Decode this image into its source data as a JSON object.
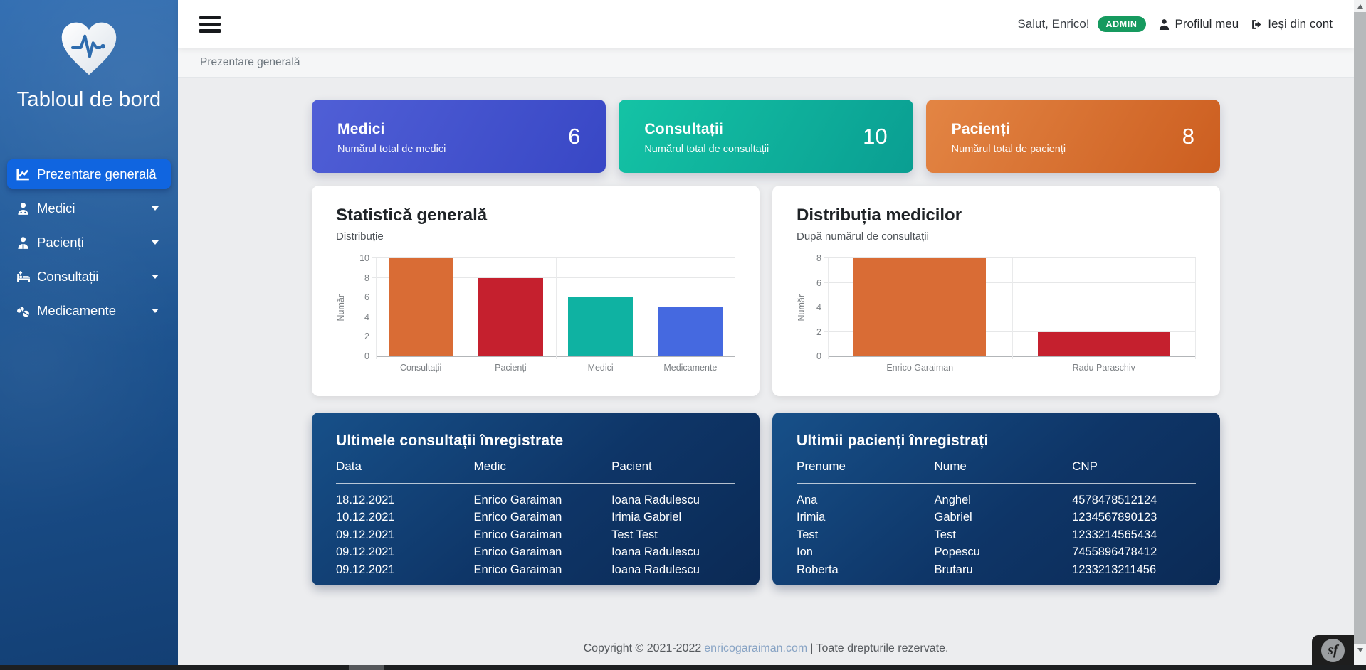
{
  "sidebar": {
    "title": "Tabloul de bord",
    "logo_icon": "heart-pulse-icon",
    "items": [
      {
        "name": "prezentare-generala",
        "label": "Prezentare generală",
        "icon": "chart-line-icon",
        "active": true,
        "caret": false
      },
      {
        "name": "medici",
        "label": "Medici",
        "icon": "doctor-icon",
        "active": false,
        "caret": true
      },
      {
        "name": "pacienti",
        "label": "Pacienți",
        "icon": "patient-icon",
        "active": false,
        "caret": true
      },
      {
        "name": "consultatii",
        "label": "Consultații",
        "icon": "bed-icon",
        "active": false,
        "caret": true
      },
      {
        "name": "medicamente",
        "label": "Medicamente",
        "icon": "pills-icon",
        "active": false,
        "caret": true
      }
    ]
  },
  "header": {
    "greeting": "Salut, Enrico!",
    "role_badge": "ADMIN",
    "badge_color": "#169a5f",
    "profile_label": "Profilul meu",
    "logout_label": "Ieși din cont"
  },
  "breadcrumb": "Prezentare generală",
  "stat_cards": [
    {
      "title": "Medici",
      "subtitle": "Numărul total de medici",
      "value": "6",
      "gradient": [
        "#505fd6",
        "#3847c5"
      ]
    },
    {
      "title": "Consultații",
      "subtitle": "Numărul total de consultații",
      "value": "10",
      "gradient": [
        "#14c3a5",
        "#0a9e92"
      ]
    },
    {
      "title": "Pacienți",
      "subtitle": "Numărul total de pacienți",
      "value": "8",
      "gradient": [
        "#e38544",
        "#cc5e20"
      ]
    }
  ],
  "chart_data": [
    {
      "type": "bar",
      "title": "Statistică generală",
      "subtitle": "Distribuție",
      "ylabel": "Număr",
      "categories": [
        "Consultații",
        "Pacienți",
        "Medici",
        "Medicamente"
      ],
      "values": [
        10,
        8,
        6,
        5
      ],
      "colors": [
        "#d96c35",
        "#c5202e",
        "#0fb2a2",
        "#4569e0"
      ],
      "ylim": [
        0,
        10
      ],
      "yticks": [
        0,
        2,
        4,
        6,
        8,
        10
      ],
      "grid": true,
      "legend": "none"
    },
    {
      "type": "bar",
      "title": "Distribuția medicilor",
      "subtitle": "După numărul de consultații",
      "ylabel": "Număr",
      "categories": [
        "Enrico Garaiman",
        "Radu Paraschiv"
      ],
      "values": [
        8,
        2
      ],
      "colors": [
        "#d96c35",
        "#c5202e"
      ],
      "ylim": [
        0,
        8
      ],
      "yticks": [
        0,
        2,
        4,
        6,
        8
      ],
      "grid": true,
      "legend": "none"
    }
  ],
  "tables": [
    {
      "title": "Ultimele consultații înregistrate",
      "columns": [
        "Data",
        "Medic",
        "Pacient"
      ],
      "rows": [
        [
          "18.12.2021",
          "Enrico Garaiman",
          "Ioana Radulescu"
        ],
        [
          "10.12.2021",
          "Enrico Garaiman",
          "Irimia Gabriel"
        ],
        [
          "09.12.2021",
          "Enrico Garaiman",
          "Test Test"
        ],
        [
          "09.12.2021",
          "Enrico Garaiman",
          "Ioana Radulescu"
        ],
        [
          "09.12.2021",
          "Enrico Garaiman",
          "Ioana Radulescu"
        ]
      ]
    },
    {
      "title": "Ultimii pacienți înregistrați",
      "columns": [
        "Prenume",
        "Nume",
        "CNP"
      ],
      "rows": [
        [
          "Ana",
          "Anghel",
          "4578478512124"
        ],
        [
          "Irimia",
          "Gabriel",
          "1234567890123"
        ],
        [
          "Test",
          "Test",
          "1233214565434"
        ],
        [
          "Ion",
          "Popescu",
          "7455896478412"
        ],
        [
          "Roberta",
          "Brutaru",
          "1233213211456"
        ]
      ]
    }
  ],
  "footer": {
    "text_before": "Copyright © 2021-2022",
    "link": "enricogaraiman.com",
    "text_after": "| Toate drepturile rezervate."
  },
  "profiler": {
    "label": "sf"
  }
}
